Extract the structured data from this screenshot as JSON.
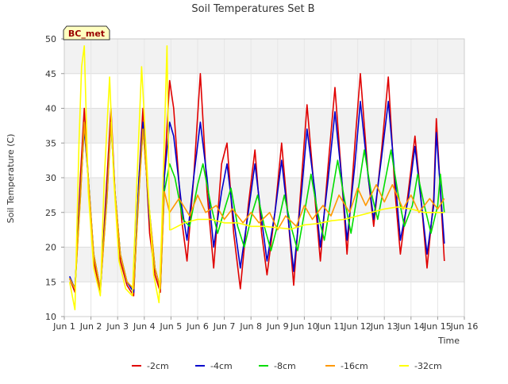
{
  "chart_data": {
    "type": "line",
    "title": "Soil Temperatures Set B",
    "xlabel": "Time",
    "ylabel": "Soil Temperature (C)",
    "badge": "BC_met",
    "xlim": [
      1,
      16
    ],
    "ylim": [
      10,
      50
    ],
    "yticks": [
      10,
      15,
      20,
      25,
      30,
      35,
      40,
      45,
      50
    ],
    "xticks": [
      {
        "v": 1,
        "label": "Jun 1"
      },
      {
        "v": 2,
        "label": "Jun 2"
      },
      {
        "v": 3,
        "label": "Jun 3"
      },
      {
        "v": 4,
        "label": "Jun 4"
      },
      {
        "v": 5,
        "label": "Jun 5"
      },
      {
        "v": 6,
        "label": "Jun 6"
      },
      {
        "v": 7,
        "label": "Jun 7"
      },
      {
        "v": 8,
        "label": "Jun 8"
      },
      {
        "v": 9,
        "label": "Jun 9"
      },
      {
        "v": 10,
        "label": "Jun 10"
      },
      {
        "v": 11,
        "label": "Jun 11"
      },
      {
        "v": 12,
        "label": "Jun 12"
      },
      {
        "v": 13,
        "label": "Jun 13"
      },
      {
        "v": 14,
        "label": "Jun 14"
      },
      {
        "v": 15,
        "label": "Jun 15"
      },
      {
        "v": 16,
        "label": "Jun 16"
      }
    ],
    "grid": true,
    "legend_position": "bottom",
    "series": [
      {
        "name": "-2cm",
        "color": "#e00000",
        "x": [
          1.2,
          1.4,
          1.6,
          1.75,
          1.9,
          2.1,
          2.35,
          2.6,
          2.75,
          2.9,
          3.1,
          3.35,
          3.6,
          3.8,
          3.95,
          4.2,
          4.4,
          4.6,
          4.75,
          4.95,
          5.1,
          5.4,
          5.6,
          5.85,
          6.1,
          6.35,
          6.6,
          6.9,
          7.1,
          7.35,
          7.6,
          7.9,
          8.15,
          8.4,
          8.6,
          8.9,
          9.15,
          9.4,
          9.6,
          9.9,
          10.1,
          10.4,
          10.6,
          10.9,
          11.15,
          11.4,
          11.6,
          11.9,
          12.1,
          12.4,
          12.6,
          12.9,
          13.15,
          13.4,
          13.6,
          13.9,
          14.15,
          14.4,
          14.6,
          14.85
        ],
        "y": [
          15.5,
          13.5,
          30,
          40,
          30,
          18,
          13.5,
          30,
          40,
          28,
          18,
          14.5,
          13,
          30,
          40,
          22,
          16,
          13.5,
          30,
          44,
          40,
          24,
          18,
          30,
          45,
          28,
          17,
          32,
          35,
          22,
          14,
          26,
          34,
          22,
          16,
          25,
          35,
          24,
          14.5,
          30,
          40.5,
          27,
          18,
          32,
          43,
          30,
          19,
          35,
          45,
          30,
          23,
          34,
          44.5,
          28,
          19,
          28,
          36,
          26,
          17,
          27
        ],
        "extra": [
          [
            14.95,
            38.5
          ],
          [
            15.25,
            18
          ]
        ]
      },
      {
        "name": "-4cm",
        "color": "#0000cc",
        "x": [
          1.2,
          1.4,
          1.6,
          1.75,
          1.9,
          2.1,
          2.35,
          2.6,
          2.75,
          2.9,
          3.1,
          3.35,
          3.6,
          3.8,
          3.95,
          4.2,
          4.4,
          4.6,
          4.75,
          4.95,
          5.1,
          5.4,
          5.6,
          5.85,
          6.1,
          6.35,
          6.6,
          6.9,
          7.1,
          7.35,
          7.6,
          7.9,
          8.15,
          8.4,
          8.6,
          8.9,
          9.15,
          9.4,
          9.6,
          9.9,
          10.1,
          10.4,
          10.6,
          10.9,
          11.15,
          11.4,
          11.6,
          11.9,
          12.1,
          12.4,
          12.6,
          12.9,
          13.15,
          13.4,
          13.6,
          13.9,
          14.15,
          14.4,
          14.6,
          14.85
        ],
        "y": [
          15.8,
          14,
          28,
          37,
          30,
          19,
          14,
          28,
          38,
          28,
          19,
          15,
          13.5,
          30,
          38,
          24,
          17,
          14,
          30,
          38,
          36,
          26,
          21,
          30,
          38,
          30,
          20,
          28,
          32,
          24,
          17,
          25,
          32,
          24,
          18,
          25,
          32.5,
          24,
          16.5,
          28,
          37,
          28,
          20,
          30,
          39.5,
          30,
          21,
          32,
          41,
          30,
          24,
          33,
          41,
          30,
          21,
          27,
          34.5,
          26,
          19,
          26
        ],
        "extra": [
          [
            14.95,
            36.5
          ],
          [
            15.25,
            20.5
          ]
        ]
      },
      {
        "name": "-8cm",
        "color": "#00dd00",
        "x": [
          1.2,
          1.4,
          1.6,
          1.75,
          1.9,
          2.1,
          2.35,
          2.6,
          2.75,
          2.9,
          3.1,
          3.35,
          3.6,
          3.8,
          3.95,
          4.2,
          4.4,
          4.6,
          4.75,
          4.95,
          5.15,
          5.45,
          5.7,
          6.0,
          6.2,
          6.5,
          6.75,
          7.05,
          7.25,
          7.5,
          7.75,
          8.05,
          8.25,
          8.5,
          8.75,
          9.05,
          9.25,
          9.5,
          9.75,
          10.05,
          10.25,
          10.5,
          10.75,
          11.05,
          11.25,
          11.5,
          11.75,
          12.05,
          12.25,
          12.5,
          12.75,
          13.05,
          13.25,
          13.5,
          13.75,
          14.05,
          14.25,
          14.5,
          14.75,
          15.0
        ],
        "y": [
          15.5,
          14,
          27,
          38,
          30,
          19,
          14,
          27,
          38,
          28,
          19,
          15,
          14,
          28,
          37,
          25,
          17,
          14,
          28,
          32,
          30,
          24,
          23,
          29,
          32,
          26,
          22,
          26,
          28.5,
          23,
          20,
          25,
          27.5,
          23,
          19.5,
          24,
          27.5,
          23,
          19.5,
          26,
          30.5,
          25,
          21,
          28,
          32.5,
          27,
          22,
          29,
          34,
          28,
          24,
          30,
          34,
          28,
          23,
          26,
          30.5,
          26,
          22,
          26
        ],
        "extra": [
          [
            15.1,
            30.5
          ],
          [
            15.25,
            25
          ]
        ]
      },
      {
        "name": "-16cm",
        "color": "#ff9900",
        "x": [
          1.2,
          1.4,
          1.6,
          1.75,
          1.9,
          2.1,
          2.35,
          2.6,
          2.75,
          2.9,
          3.1,
          3.35,
          3.6,
          3.8,
          3.95,
          4.2,
          4.4,
          4.6,
          4.75,
          4.95,
          5.3,
          5.7,
          6.0,
          6.3,
          6.7,
          7.0,
          7.3,
          7.7,
          8.0,
          8.3,
          8.7,
          9.0,
          9.3,
          9.7,
          10.0,
          10.3,
          10.7,
          11.0,
          11.3,
          11.7,
          12.0,
          12.3,
          12.7,
          13.0,
          13.3,
          13.7,
          14.0,
          14.3,
          14.7,
          15.0,
          15.25
        ],
        "y": [
          15.5,
          14,
          27,
          38,
          30,
          19,
          14,
          27,
          38,
          28,
          19,
          15,
          14,
          28,
          37,
          25,
          17,
          14,
          28,
          25,
          27,
          24.5,
          27.5,
          25,
          26,
          24,
          25.5,
          23.5,
          25,
          23.5,
          25,
          22.5,
          24.5,
          23,
          26,
          24,
          26,
          24.5,
          27.5,
          25,
          28.5,
          26,
          29,
          26.5,
          29,
          25.5,
          27.5,
          25,
          27,
          25.5,
          27
        ]
      },
      {
        "name": "-32cm",
        "color": "#ffff00",
        "x": [
          1.2,
          1.4,
          1.55,
          1.65,
          1.75,
          1.9,
          2.1,
          2.35,
          2.5,
          2.7,
          2.85,
          3.05,
          3.3,
          3.55,
          3.75,
          3.9,
          4.15,
          4.35,
          4.55,
          4.65,
          4.85,
          4.95,
          5.0,
          5.5,
          6.0,
          6.5,
          7.0,
          7.5,
          8.0,
          8.5,
          9.0,
          9.5,
          10.0,
          10.5,
          11.0,
          11.5,
          12.0,
          12.5,
          13.0,
          13.5,
          14.0,
          14.5,
          15.0,
          15.25
        ],
        "y": [
          15,
          11,
          35,
          46,
          49,
          28,
          17,
          13,
          30,
          44.5,
          30,
          18,
          14,
          13,
          32,
          46,
          28,
          16,
          12,
          22,
          49,
          22.5,
          22.5,
          23.5,
          24,
          24,
          23.5,
          23.5,
          23,
          23,
          22.8,
          22.6,
          23.2,
          23.4,
          23.8,
          24,
          24.5,
          25,
          25.5,
          25.8,
          25.5,
          25,
          25,
          25
        ]
      }
    ]
  }
}
